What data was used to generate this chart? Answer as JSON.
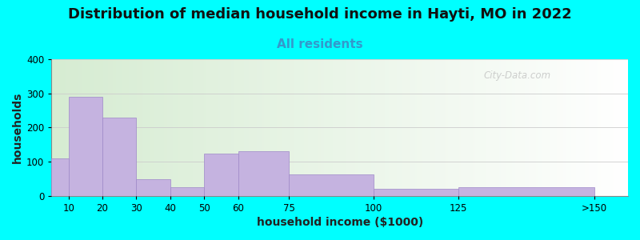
{
  "title": "Distribution of median household income in Hayti, MO in 2022",
  "subtitle": "All residents",
  "xlabel": "household income ($1000)",
  "ylabel": "households",
  "background_color": "#00FFFF",
  "bar_color": "#c5b3e0",
  "bar_edgecolor": "#9e88c8",
  "categories": [
    "10",
    "20",
    "30",
    "40",
    "50",
    "60",
    "75",
    "100",
    "125",
    ">150"
  ],
  "x_left_edges": [
    5,
    10,
    20,
    30,
    40,
    50,
    60,
    75,
    100,
    125
  ],
  "x_right_edges": [
    10,
    20,
    30,
    40,
    50,
    60,
    75,
    100,
    125,
    165
  ],
  "x_tick_positions": [
    10,
    20,
    30,
    40,
    50,
    60,
    75,
    100,
    125,
    165
  ],
  "x_tick_labels": [
    "10",
    "20",
    "30",
    "40",
    "50",
    "60",
    "75",
    "100",
    "125",
    ">150"
  ],
  "values": [
    110,
    290,
    228,
    48,
    25,
    124,
    130,
    62,
    20,
    25
  ],
  "ylim": [
    0,
    400
  ],
  "yticks": [
    0,
    100,
    200,
    300,
    400
  ],
  "xlim": [
    5,
    175
  ],
  "watermark": "City-Data.com",
  "title_fontsize": 13,
  "subtitle_fontsize": 11,
  "axis_label_fontsize": 10,
  "gradient_colors": [
    "#d6ecd2",
    "#f0f8ee",
    "#ffffff"
  ],
  "subtitle_color": "#3399cc"
}
